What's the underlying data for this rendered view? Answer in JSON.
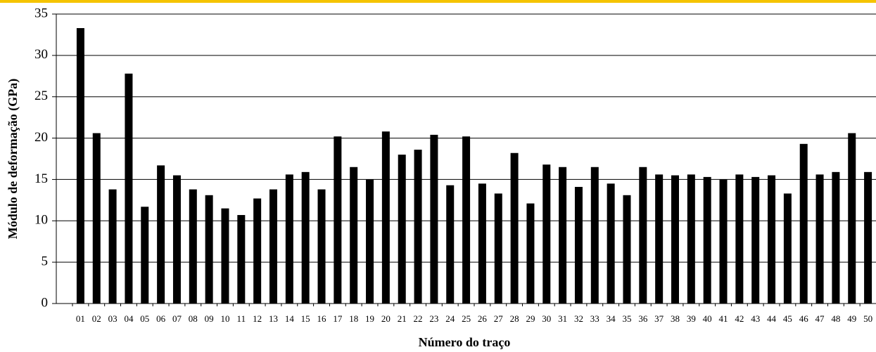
{
  "chart_data": {
    "type": "bar",
    "x_label": "Número do traço",
    "y_label": "Módulo de deformação (GPa)",
    "categories": [
      "01",
      "02",
      "03",
      "04",
      "05",
      "06",
      "07",
      "08",
      "09",
      "10",
      "11",
      "12",
      "13",
      "14",
      "15",
      "16",
      "17",
      "18",
      "19",
      "20",
      "21",
      "22",
      "23",
      "24",
      "25",
      "26",
      "27",
      "28",
      "29",
      "30",
      "31",
      "32",
      "33",
      "34",
      "35",
      "36",
      "37",
      "38",
      "39",
      "40",
      "41",
      "42",
      "43",
      "44",
      "45",
      "46",
      "47",
      "48",
      "49",
      "50"
    ],
    "values": [
      33.3,
      20.6,
      13.8,
      27.8,
      11.7,
      16.7,
      15.5,
      13.8,
      13.1,
      11.5,
      10.7,
      12.7,
      13.8,
      15.6,
      15.9,
      13.8,
      20.2,
      16.5,
      15.0,
      20.8,
      18.0,
      18.6,
      20.4,
      14.3,
      20.2,
      14.5,
      13.3,
      18.2,
      12.1,
      16.8,
      16.5,
      14.1,
      16.5,
      14.5,
      13.1,
      16.5,
      15.6,
      15.5,
      15.6,
      15.3,
      15.0,
      15.6,
      15.3,
      15.5,
      13.3,
      19.3,
      15.6,
      15.9,
      20.6,
      15.9
    ],
    "color": "#000000",
    "ylim": [
      0,
      35
    ],
    "yticks": [
      0,
      5,
      10,
      15,
      20,
      25,
      30,
      35
    ],
    "grid": true
  }
}
